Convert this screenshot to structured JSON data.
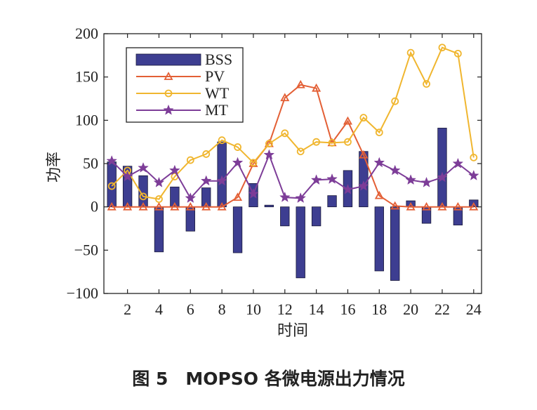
{
  "figure": {
    "caption": "图 5　MOPSO 各微电源出力情况"
  },
  "chart_data": {
    "type": "bar",
    "xlabel": "时间",
    "ylabel": "功率",
    "xlim": [
      0.5,
      24.5
    ],
    "ylim": [
      -100,
      200
    ],
    "x_ticks": [
      2,
      4,
      6,
      8,
      10,
      12,
      14,
      16,
      18,
      20,
      22,
      24
    ],
    "y_ticks": [
      -100,
      -50,
      0,
      50,
      100,
      150,
      200
    ],
    "grid": false,
    "legend_position": "top-left",
    "x": [
      1,
      2,
      3,
      4,
      5,
      6,
      7,
      8,
      9,
      10,
      11,
      12,
      13,
      14,
      15,
      16,
      17,
      18,
      19,
      20,
      21,
      22,
      23,
      24
    ],
    "series": [
      {
        "name": "BSS",
        "kind": "bar",
        "color": "#3d3e91",
        "values": [
          52,
          47,
          36,
          -52,
          23,
          -28,
          22,
          75,
          -53,
          27,
          2,
          -22,
          -82,
          -22,
          13,
          42,
          64,
          -74,
          -85,
          7,
          -19,
          91,
          -21,
          8
        ]
      },
      {
        "name": "PV",
        "kind": "line",
        "marker": "triangle",
        "color": "#e35f35",
        "values": [
          0,
          0,
          0,
          0,
          0,
          0,
          0,
          0,
          11,
          50,
          73,
          126,
          141,
          137,
          74,
          99,
          60,
          13,
          1,
          0,
          0,
          0,
          0,
          0
        ]
      },
      {
        "name": "WT",
        "kind": "line",
        "marker": "circle",
        "color": "#f0b62f",
        "values": [
          24,
          42,
          12,
          9,
          35,
          54,
          61,
          77,
          69,
          51,
          73,
          85,
          64,
          75,
          74,
          75,
          103,
          86,
          122,
          178,
          142,
          184,
          177,
          57
        ]
      },
      {
        "name": "MT",
        "kind": "line",
        "marker": "star",
        "color": "#7d3d98",
        "values": [
          53,
          35,
          45,
          28,
          42,
          10,
          30,
          30,
          51,
          15,
          60,
          11,
          10,
          31,
          32,
          20,
          24,
          51,
          42,
          31,
          28,
          34,
          50,
          36
        ]
      }
    ]
  }
}
